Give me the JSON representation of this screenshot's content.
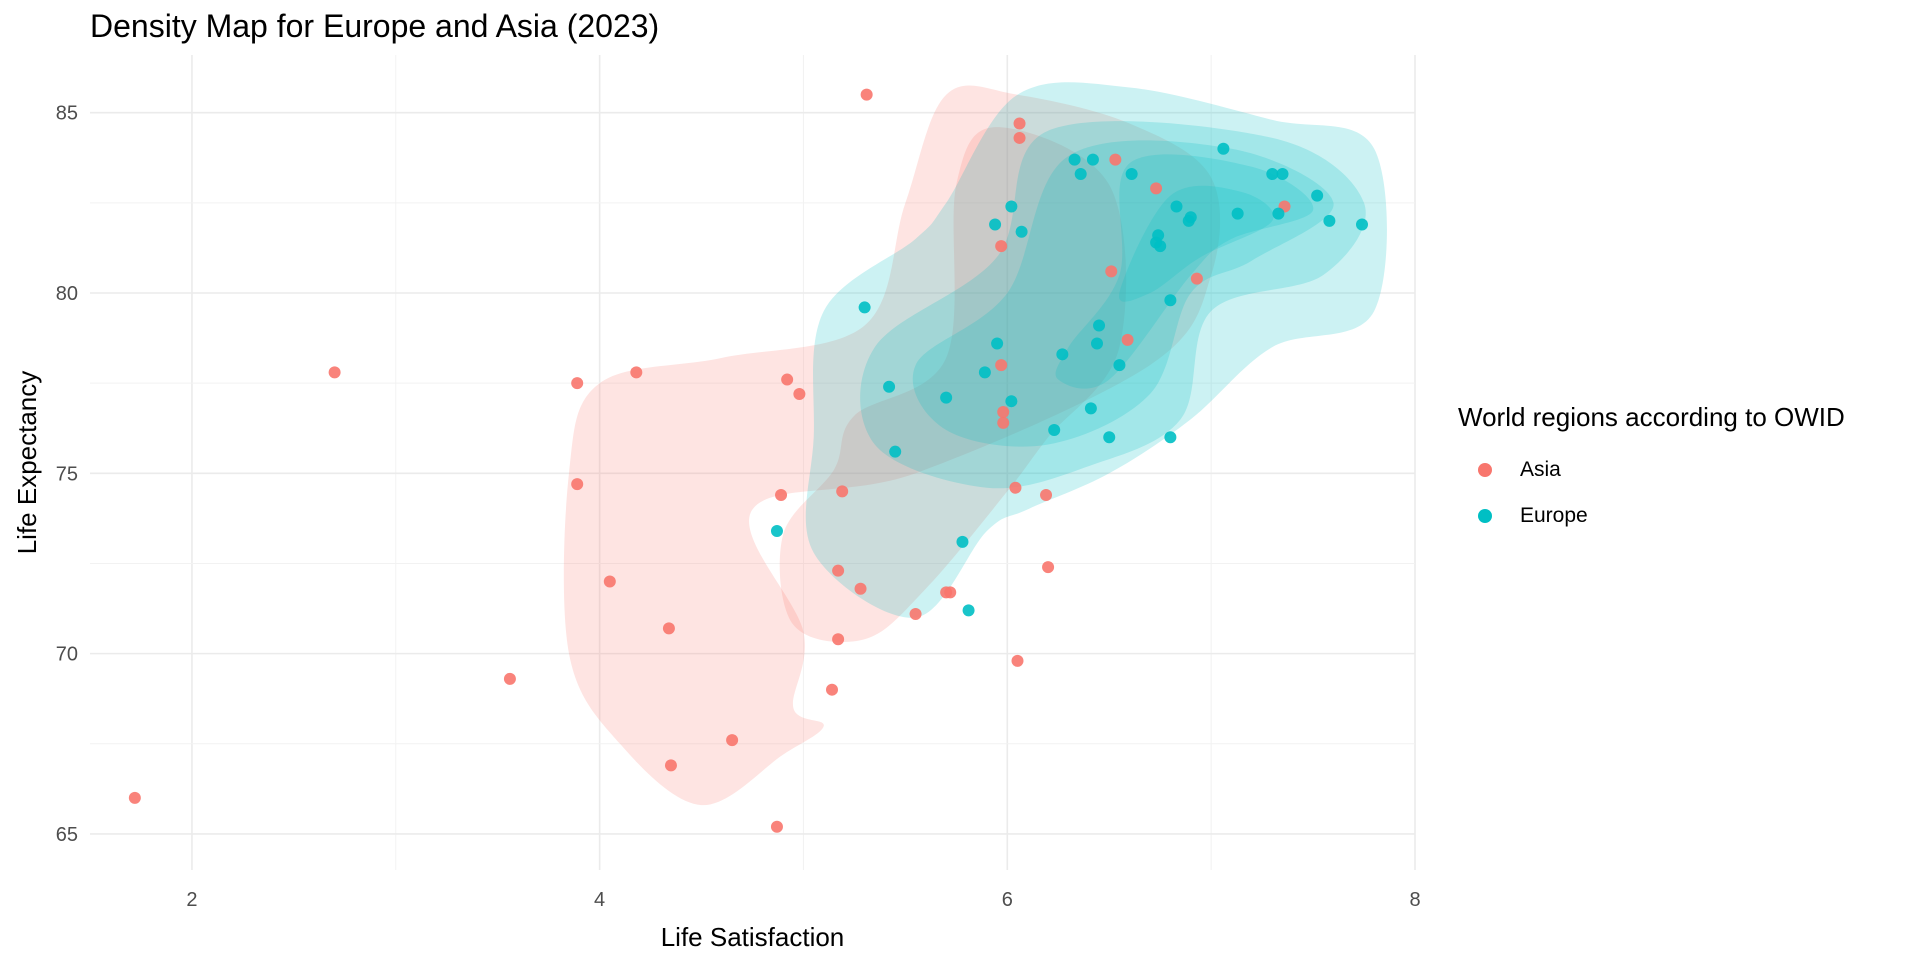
{
  "chart_data": {
    "type": "scatter",
    "title": "Density Map for Europe and Asia (2023)",
    "xlabel": "Life Satisfaction",
    "ylabel": "Life Expectancy",
    "xlim": [
      1.5,
      8.0
    ],
    "ylim": [
      64.0,
      86.6
    ],
    "x_ticks": [
      2,
      4,
      6,
      8
    ],
    "y_ticks": [
      65,
      70,
      75,
      80,
      85
    ],
    "grid": true,
    "legend": {
      "title": "World regions according to OWID",
      "placement": "right",
      "entries": [
        {
          "label": "Asia",
          "color": "#F8766D"
        },
        {
          "label": "Europe",
          "color": "#00BFC4"
        }
      ]
    },
    "series": [
      {
        "name": "Asia",
        "color": "#F8766D",
        "points": [
          [
            1.72,
            66.0
          ],
          [
            2.7,
            77.8
          ],
          [
            3.56,
            69.3
          ],
          [
            3.89,
            77.5
          ],
          [
            3.89,
            74.7
          ],
          [
            4.05,
            72.0
          ],
          [
            4.18,
            77.8
          ],
          [
            4.34,
            70.7
          ],
          [
            4.35,
            66.9
          ],
          [
            4.65,
            67.6
          ],
          [
            4.87,
            65.2
          ],
          [
            4.89,
            74.4
          ],
          [
            4.92,
            77.6
          ],
          [
            4.98,
            77.2
          ],
          [
            5.14,
            69.0
          ],
          [
            5.17,
            70.4
          ],
          [
            5.17,
            72.3
          ],
          [
            5.19,
            74.5
          ],
          [
            5.28,
            71.8
          ],
          [
            5.31,
            85.5
          ],
          [
            5.55,
            71.1
          ],
          [
            5.7,
            71.7
          ],
          [
            5.72,
            71.7
          ],
          [
            5.97,
            81.3
          ],
          [
            5.97,
            78.0
          ],
          [
            5.98,
            76.7
          ],
          [
            5.98,
            76.4
          ],
          [
            6.04,
            74.6
          ],
          [
            6.05,
            69.8
          ],
          [
            6.06,
            84.7
          ],
          [
            6.06,
            84.3
          ],
          [
            6.19,
            74.4
          ],
          [
            6.2,
            72.4
          ],
          [
            6.51,
            80.6
          ],
          [
            6.59,
            78.7
          ],
          [
            6.53,
            83.7
          ],
          [
            6.73,
            82.9
          ],
          [
            6.93,
            80.4
          ],
          [
            7.36,
            82.4
          ]
        ]
      },
      {
        "name": "Europe",
        "color": "#00BFC4",
        "points": [
          [
            4.87,
            73.4
          ],
          [
            5.3,
            79.6
          ],
          [
            5.42,
            77.4
          ],
          [
            5.45,
            75.6
          ],
          [
            5.7,
            77.1
          ],
          [
            5.78,
            73.1
          ],
          [
            5.81,
            71.2
          ],
          [
            5.89,
            77.8
          ],
          [
            5.94,
            81.9
          ],
          [
            5.95,
            78.6
          ],
          [
            6.02,
            82.4
          ],
          [
            6.02,
            77.0
          ],
          [
            6.07,
            81.7
          ],
          [
            6.23,
            76.2
          ],
          [
            6.27,
            78.3
          ],
          [
            6.33,
            83.7
          ],
          [
            6.36,
            83.3
          ],
          [
            6.41,
            76.8
          ],
          [
            6.42,
            83.7
          ],
          [
            6.44,
            78.6
          ],
          [
            6.45,
            79.1
          ],
          [
            6.5,
            76.0
          ],
          [
            6.55,
            78.0
          ],
          [
            6.61,
            83.3
          ],
          [
            6.73,
            81.4
          ],
          [
            6.74,
            81.6
          ],
          [
            6.75,
            81.3
          ],
          [
            6.8,
            79.8
          ],
          [
            6.8,
            76.0
          ],
          [
            6.83,
            82.4
          ],
          [
            6.89,
            82.0
          ],
          [
            6.9,
            82.1
          ],
          [
            7.06,
            84.0
          ],
          [
            7.13,
            82.2
          ],
          [
            7.3,
            83.3
          ],
          [
            7.33,
            82.2
          ],
          [
            7.35,
            83.3
          ],
          [
            7.52,
            82.7
          ],
          [
            7.58,
            82.0
          ],
          [
            7.74,
            81.9
          ]
        ]
      }
    ],
    "density": {
      "Asia": {
        "color": "#F8766D",
        "contours": [
          [
            [
              4.0,
              77.5
            ],
            [
              4.6,
              78.2
            ],
            [
              5.3,
              79.1
            ],
            [
              5.5,
              82.5
            ],
            [
              5.7,
              85.5
            ],
            [
              6.05,
              85.5
            ],
            [
              6.6,
              84.7
            ],
            [
              7.0,
              83.2
            ],
            [
              7.0,
              80.5
            ],
            [
              6.7,
              78.0
            ],
            [
              5.55,
              75.0
            ],
            [
              4.75,
              74.0
            ],
            [
              5.0,
              70.6
            ],
            [
              4.95,
              68.5
            ],
            [
              5.1,
              68.0
            ],
            [
              4.9,
              67.2
            ],
            [
              4.5,
              65.8
            ],
            [
              4.1,
              67.5
            ],
            [
              3.85,
              70.0
            ],
            [
              3.85,
              75.0
            ]
          ],
          [
            [
              5.25,
              76.6
            ],
            [
              5.7,
              78.2
            ],
            [
              5.75,
              83.0
            ],
            [
              5.95,
              84.6
            ],
            [
              6.5,
              83.0
            ],
            [
              6.55,
              78.5
            ],
            [
              6.2,
              76.0
            ],
            [
              6.0,
              74.5
            ],
            [
              5.6,
              71.8
            ],
            [
              5.3,
              70.4
            ],
            [
              4.95,
              70.8
            ],
            [
              4.9,
              73.3
            ],
            [
              5.15,
              75.1
            ]
          ]
        ]
      },
      "Europe": {
        "color": "#00BFC4",
        "contours": [
          [
            [
              5.1,
              79.5
            ],
            [
              5.55,
              81.5
            ],
            [
              5.7,
              82.5
            ],
            [
              6.05,
              85.5
            ],
            [
              6.6,
              85.7
            ],
            [
              7.3,
              84.8
            ],
            [
              7.8,
              84.0
            ],
            [
              7.8,
              79.5
            ],
            [
              7.3,
              78.5
            ],
            [
              6.9,
              76.5
            ],
            [
              6.5,
              75.0
            ],
            [
              6.1,
              74.0
            ],
            [
              5.9,
              73.4
            ],
            [
              5.55,
              71.0
            ],
            [
              5.05,
              72.8
            ],
            [
              5.05,
              76.0
            ]
          ],
          [
            [
              5.35,
              78.5
            ],
            [
              5.95,
              81.0
            ],
            [
              6.2,
              84.5
            ],
            [
              7.3,
              84.3
            ],
            [
              7.75,
              82.5
            ],
            [
              7.55,
              80.5
            ],
            [
              7.0,
              79.5
            ],
            [
              6.85,
              76.5
            ],
            [
              6.4,
              75.2
            ],
            [
              5.9,
              74.6
            ],
            [
              5.35,
              75.8
            ]
          ],
          [
            [
              5.55,
              78.0
            ],
            [
              6.0,
              80.0
            ],
            [
              6.3,
              83.8
            ],
            [
              7.1,
              84.0
            ],
            [
              7.6,
              82.5
            ],
            [
              7.2,
              80.9
            ],
            [
              6.9,
              80.0
            ],
            [
              6.7,
              77.2
            ],
            [
              6.2,
              75.8
            ],
            [
              5.7,
              76.2
            ]
          ],
          [
            [
              6.3,
              78.5
            ],
            [
              6.55,
              80.5
            ],
            [
              6.6,
              83.6
            ],
            [
              7.2,
              83.5
            ],
            [
              7.5,
              82.3
            ],
            [
              7.1,
              81.5
            ],
            [
              6.9,
              80.5
            ],
            [
              6.5,
              77.6
            ],
            [
              6.25,
              77.6
            ]
          ],
          [
            [
              6.55,
              80.0
            ],
            [
              6.8,
              82.7
            ],
            [
              7.15,
              82.8
            ],
            [
              7.3,
              82.0
            ],
            [
              6.95,
              81.0
            ],
            [
              6.7,
              80.0
            ]
          ]
        ]
      }
    }
  }
}
